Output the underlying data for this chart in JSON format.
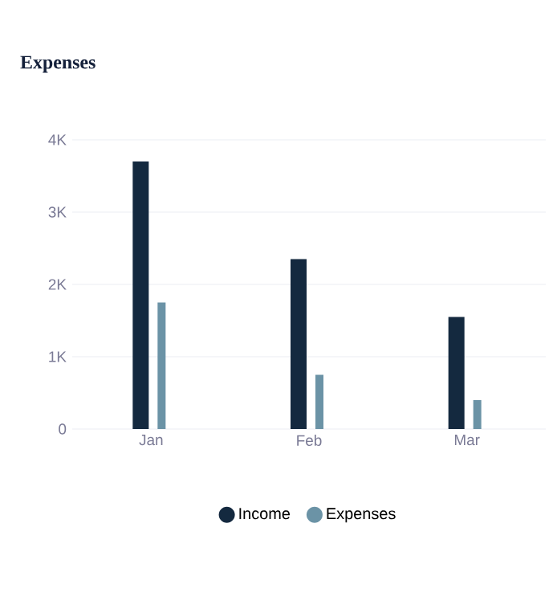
{
  "chart_data": {
    "type": "bar",
    "title": "Expenses",
    "categories": [
      "Jan",
      "Feb",
      "Mar"
    ],
    "series": [
      {
        "name": "Income",
        "color": "#14293f",
        "values": [
          3700,
          2350,
          1550
        ]
      },
      {
        "name": "Expenses",
        "color": "#6b93a6",
        "values": [
          1750,
          750,
          400
        ]
      }
    ],
    "ylim": [
      0,
      4000
    ],
    "yticks": [
      0,
      {
        "value": 1000,
        "label": "1K"
      },
      {
        "value": 2000,
        "label": "2K"
      },
      {
        "value": 3000,
        "label": "3K"
      },
      {
        "value": 4000,
        "label": "4K"
      }
    ],
    "grid": "y",
    "legend": "bottom"
  }
}
